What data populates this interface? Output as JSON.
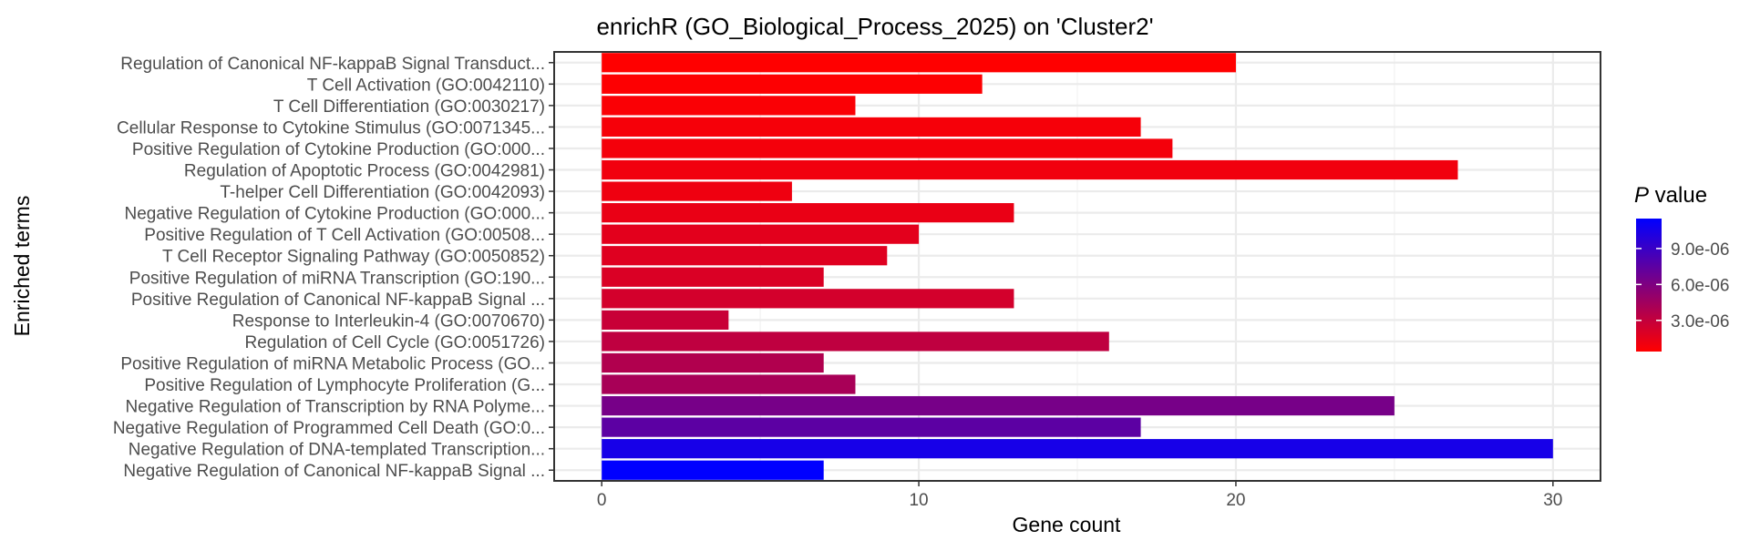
{
  "chart_data": {
    "type": "bar",
    "orientation": "horizontal",
    "title": "enrichR (GO_Biological_Process_2025) on 'Cluster2'",
    "xlabel": "Gene count",
    "ylabel": "Enriched terms",
    "xlim": [
      -1.5,
      31.5
    ],
    "x_ticks": [
      0,
      10,
      20,
      30
    ],
    "grid": true,
    "legend_position": "right",
    "legend": {
      "title_italic": "P",
      "title_rest": " value",
      "colors_low_to_high": [
        "#ff0000",
        "#0000ff"
      ],
      "value_range": [
        4e-07,
        1.15e-05
      ],
      "ticks": [
        {
          "value": 3e-06,
          "label": "3.0e-06"
        },
        {
          "value": 6e-06,
          "label": "6.0e-06"
        },
        {
          "value": 9e-06,
          "label": "9.0e-06"
        }
      ]
    },
    "categories": [
      "Regulation of Canonical NF-kappaB Signal Transduct...",
      "T Cell Activation (GO:0042110)",
      "T Cell Differentiation (GO:0030217)",
      "Cellular Response to Cytokine Stimulus (GO:0071345...",
      "Positive Regulation of Cytokine Production (GO:000...",
      "Regulation of Apoptotic Process (GO:0042981)",
      "T-helper Cell Differentiation (GO:0042093)",
      "Negative Regulation of Cytokine Production (GO:000...",
      "Positive Regulation of T Cell Activation (GO:00508...",
      "T Cell Receptor Signaling Pathway (GO:0050852)",
      "Positive Regulation of miRNA Transcription (GO:190...",
      "Positive Regulation of Canonical NF-kappaB Signal ...",
      "Response to Interleukin-4 (GO:0070670)",
      "Regulation of Cell Cycle (GO:0051726)",
      "Positive Regulation of miRNA Metabolic Process (GO...",
      "Positive Regulation of Lymphocyte Proliferation (G...",
      "Negative Regulation of Transcription by RNA Polyme...",
      "Negative Regulation of Programmed Cell Death (GO:0...",
      "Negative Regulation of DNA-templated Transcription...",
      "Negative Regulation of Canonical NF-kappaB Signal ..."
    ],
    "values": [
      20,
      12,
      8,
      17,
      18,
      27,
      6,
      13,
      10,
      9,
      7,
      13,
      4,
      16,
      7,
      8,
      25,
      17,
      30,
      7
    ],
    "p_values": [
      4e-07,
      5e-07,
      6e-07,
      8e-07,
      9e-07,
      1e-06,
      1.1e-06,
      1.3e-06,
      1.6e-06,
      1.8e-06,
      2e-06,
      2.3e-06,
      2.8e-06,
      3.2e-06,
      3.8e-06,
      4.2e-06,
      6.3e-06,
      7.5e-06,
      1.05e-05,
      1.15e-05
    ]
  }
}
